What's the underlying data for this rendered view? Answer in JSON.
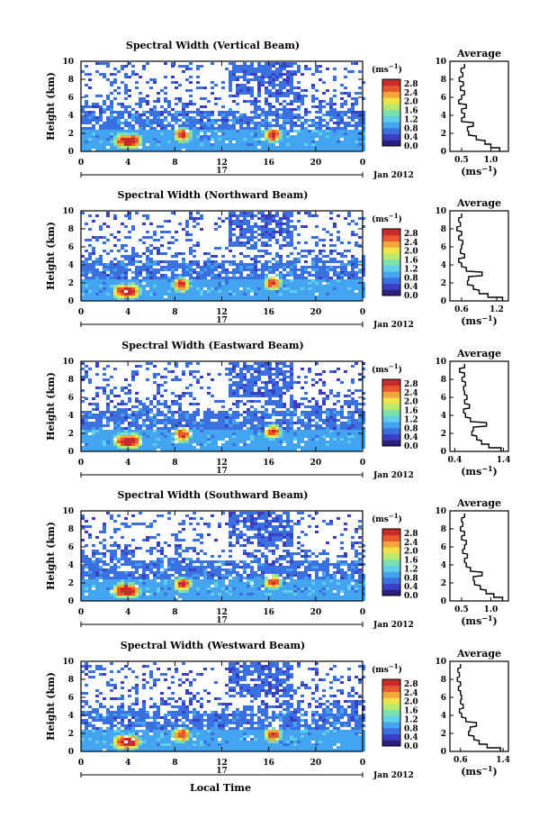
{
  "figure": {
    "xlabel": "Local Time",
    "date_label": "Jan 2012",
    "day_label": "17",
    "ylabel": "Height (km)",
    "colorbar_unit": "(ms",
    "unit_exp": "−1",
    "avg_title": "Average",
    "avg_unit": "(ms",
    "colors": [
      "#2b1f7a",
      "#3a3fc4",
      "#3a70e0",
      "#44a4f0",
      "#5fd0e8",
      "#7ae0b0",
      "#b8ea70",
      "#f0e448",
      "#f3a73a",
      "#e8572e",
      "#c92a2a"
    ]
  },
  "chart_data": [
    {
      "type": "heatmap",
      "title": "Spectral Width (Vertical Beam)",
      "x_ticks": [
        "0",
        "4",
        "8",
        "12",
        "16",
        "20",
        "0"
      ],
      "y_ticks": [
        "0",
        "2",
        "4",
        "6",
        "8",
        "10"
      ],
      "xlim": [
        0,
        24
      ],
      "ylim": [
        0,
        10
      ],
      "colorbar_ticks": [
        "0.0",
        "0.4",
        "0.8",
        "1.2",
        "1.6",
        "2.0",
        "2.4",
        "2.8"
      ],
      "colorbar_range": [
        0,
        3.0
      ],
      "hotspots": [
        [
          3.4,
          1.3
        ],
        [
          4.3,
          1.3
        ],
        [
          8.5,
          2.0
        ],
        [
          16.2,
          2.0
        ]
      ],
      "average_profile": {
        "x_ticks": [
          "0.5",
          "1.0"
        ],
        "xlim": [
          0.3,
          1.3
        ],
        "height": [
          0.2,
          0.6,
          1.0,
          1.5,
          2.0,
          2.5,
          3.0,
          3.5,
          4.0,
          4.5,
          5.0,
          5.5,
          6.0,
          6.5,
          7.0,
          7.5,
          8.0,
          8.5,
          9.0,
          9.5
        ],
        "value": [
          1.15,
          1.0,
          0.9,
          0.75,
          0.62,
          0.6,
          0.7,
          0.5,
          0.55,
          0.5,
          0.58,
          0.45,
          0.5,
          0.55,
          0.48,
          0.53,
          0.46,
          0.52,
          0.49,
          0.55
        ]
      }
    },
    {
      "type": "heatmap",
      "title": "Spectral Width (Northward Beam)",
      "x_ticks": [
        "0",
        "4",
        "8",
        "12",
        "16",
        "20",
        "0"
      ],
      "y_ticks": [
        "0",
        "2",
        "4",
        "6",
        "8",
        "10"
      ],
      "xlim": [
        0,
        24
      ],
      "ylim": [
        0,
        10
      ],
      "colorbar_ticks": [
        "0.0",
        "0.4",
        "0.8",
        "1.2",
        "1.6",
        "2.0",
        "2.4",
        "2.8"
      ],
      "colorbar_range": [
        0,
        3.0
      ],
      "hotspots": [
        [
          3.3,
          1.2
        ],
        [
          4.2,
          1.2
        ],
        [
          8.4,
          2.0
        ],
        [
          16.2,
          2.2
        ]
      ],
      "average_profile": {
        "x_ticks": [
          "0.6",
          "1.2"
        ],
        "xlim": [
          0.4,
          1.4
        ],
        "height": [
          0.2,
          0.6,
          1.0,
          1.5,
          2.0,
          2.5,
          3.0,
          3.5,
          4.0,
          4.5,
          5.0,
          5.5,
          6.0,
          6.5,
          7.0,
          7.5,
          8.0,
          8.5,
          9.0,
          9.5
        ],
        "value": [
          1.3,
          1.05,
          0.9,
          0.8,
          0.7,
          0.72,
          0.95,
          0.68,
          0.6,
          0.55,
          0.65,
          0.58,
          0.6,
          0.62,
          0.55,
          0.6,
          0.52,
          0.58,
          0.55,
          0.6
        ]
      }
    },
    {
      "type": "heatmap",
      "title": "Spectral Width (Eastward Beam)",
      "x_ticks": [
        "0",
        "4",
        "8",
        "12",
        "16",
        "20",
        "0"
      ],
      "y_ticks": [
        "0",
        "2",
        "4",
        "6",
        "8",
        "10"
      ],
      "xlim": [
        0,
        24
      ],
      "ylim": [
        0,
        10
      ],
      "colorbar_ticks": [
        "0.0",
        "0.4",
        "0.8",
        "1.2",
        "1.6",
        "2.0",
        "2.4",
        "2.8"
      ],
      "colorbar_range": [
        0,
        3.0
      ],
      "hotspots": [
        [
          3.4,
          1.3
        ],
        [
          4.3,
          1.3
        ],
        [
          8.5,
          2.0
        ],
        [
          16.2,
          2.4
        ]
      ],
      "average_profile": {
        "x_ticks": [
          "0.4",
          "1.4"
        ],
        "xlim": [
          0.3,
          1.5
        ],
        "height": [
          0.2,
          0.6,
          1.0,
          1.5,
          2.0,
          2.5,
          3.0,
          3.5,
          4.0,
          4.5,
          5.0,
          5.5,
          6.0,
          6.5,
          7.0,
          7.5,
          8.0,
          8.5,
          9.0,
          9.5
        ],
        "value": [
          1.35,
          1.1,
          0.95,
          0.85,
          0.75,
          0.78,
          1.05,
          0.72,
          0.62,
          0.58,
          0.7,
          0.6,
          0.65,
          0.6,
          0.58,
          0.62,
          0.55,
          0.6,
          0.5,
          0.6
        ]
      }
    },
    {
      "type": "heatmap",
      "title": "Spectral Width (Southward Beam)",
      "x_ticks": [
        "0",
        "4",
        "8",
        "12",
        "16",
        "20",
        "0"
      ],
      "y_ticks": [
        "0",
        "2",
        "4",
        "6",
        "8",
        "10"
      ],
      "xlim": [
        0,
        24
      ],
      "ylim": [
        0,
        10
      ],
      "colorbar_ticks": [
        "0.0",
        "0.4",
        "0.8",
        "1.2",
        "1.6",
        "2.0",
        "2.4",
        "2.8"
      ],
      "colorbar_range": [
        0,
        3.0
      ],
      "hotspots": [
        [
          3.3,
          1.3
        ],
        [
          4.2,
          1.3
        ],
        [
          8.5,
          2.0
        ],
        [
          16.2,
          2.3
        ]
      ],
      "average_profile": {
        "x_ticks": [
          "0.5",
          "1.0"
        ],
        "xlim": [
          0.3,
          1.3
        ],
        "height": [
          0.2,
          0.6,
          1.0,
          1.5,
          2.0,
          2.5,
          3.0,
          3.5,
          4.0,
          4.5,
          5.0,
          5.5,
          6.0,
          6.5,
          7.0,
          7.5,
          8.0,
          8.5,
          9.0,
          9.5
        ],
        "value": [
          1.2,
          1.05,
          0.92,
          0.82,
          0.72,
          0.7,
          0.85,
          0.65,
          0.58,
          0.55,
          0.6,
          0.52,
          0.55,
          0.58,
          0.5,
          0.55,
          0.48,
          0.52,
          0.5,
          0.55
        ]
      }
    },
    {
      "type": "heatmap",
      "title": "Spectral Width (Westward Beam)",
      "x_ticks": [
        "0",
        "4",
        "8",
        "12",
        "16",
        "20",
        "0"
      ],
      "y_ticks": [
        "0",
        "2",
        "4",
        "6",
        "8",
        "10"
      ],
      "xlim": [
        0,
        24
      ],
      "ylim": [
        0,
        10
      ],
      "colorbar_ticks": [
        "0.0",
        "0.4",
        "0.8",
        "1.2",
        "1.6",
        "2.0",
        "2.4",
        "2.8"
      ],
      "colorbar_range": [
        0,
        3.0
      ],
      "hotspots": [
        [
          3.3,
          1.2
        ],
        [
          4.2,
          1.2
        ],
        [
          8.4,
          2.0
        ],
        [
          16.2,
          2.0
        ]
      ],
      "average_profile": {
        "x_ticks": [
          "0.6",
          "1.4"
        ],
        "xlim": [
          0.4,
          1.5
        ],
        "height": [
          0.2,
          0.6,
          1.0,
          1.5,
          2.0,
          2.5,
          3.0,
          3.5,
          4.0,
          4.5,
          5.0,
          5.5,
          6.0,
          6.5,
          7.0,
          7.5,
          8.0,
          8.5,
          9.0,
          9.5
        ],
        "value": [
          1.35,
          1.1,
          0.95,
          0.85,
          0.75,
          0.78,
          0.9,
          0.7,
          0.62,
          0.58,
          0.65,
          0.6,
          0.62,
          0.6,
          0.56,
          0.6,
          0.54,
          0.58,
          0.55,
          0.6
        ]
      }
    }
  ]
}
